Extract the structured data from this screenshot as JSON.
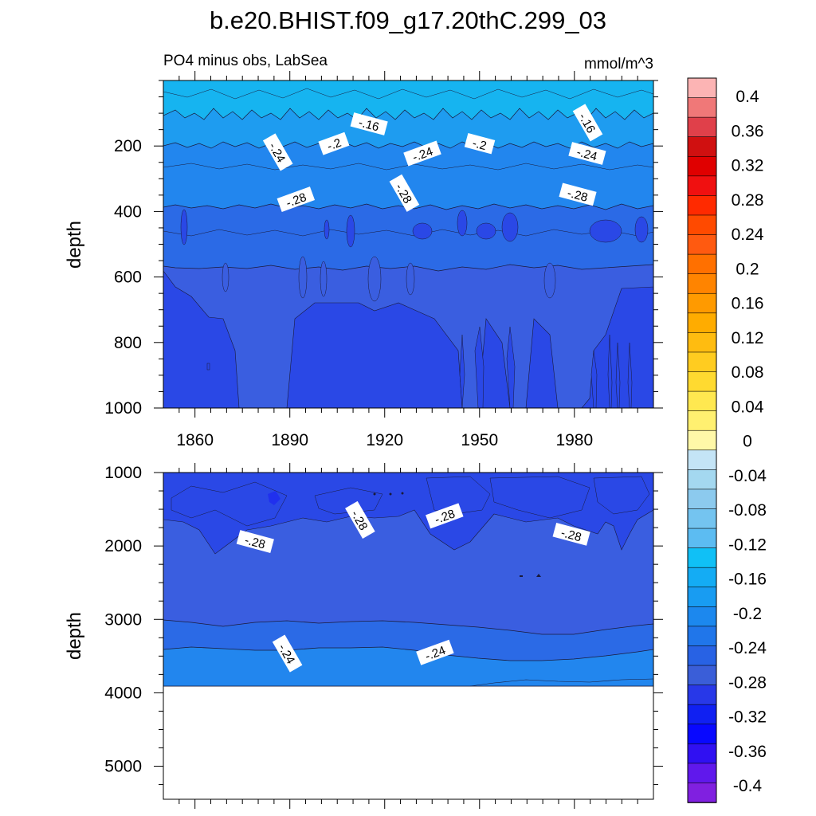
{
  "figure": {
    "title": "b.e20.BHIST.f09_g17.20thC.299_03"
  },
  "top_panel": {
    "left_label": "PO4 minus obs, LabSea",
    "right_label": "mmol/m^3",
    "ylabel": "depth",
    "y_ticks": [
      "200",
      "400",
      "600",
      "800",
      "1000"
    ],
    "x_ticks": [
      "1860",
      "1890",
      "1920",
      "1950",
      "1980"
    ]
  },
  "bottom_panel": {
    "ylabel": "depth",
    "y_ticks": [
      "1000",
      "2000",
      "3000",
      "4000",
      "5000"
    ]
  },
  "colorbar": {
    "labels": [
      "0.4",
      "0.36",
      "0.32",
      "0.28",
      "0.24",
      "0.2",
      "0.16",
      "0.12",
      "0.08",
      "0.04",
      "0",
      "-0.04",
      "-0.08",
      "-0.12",
      "-0.16",
      "-0.2",
      "-0.24",
      "-0.28",
      "-0.32",
      "-0.36",
      "-0.4"
    ]
  },
  "chart_data": [
    {
      "type": "heatmap",
      "title": "PO4 minus obs, LabSea",
      "units": "mmol/m^3",
      "xlabel": "",
      "ylabel": "depth",
      "xlim": [
        1850,
        2005
      ],
      "ylim": [
        1000,
        0
      ],
      "x_ticks": [
        1860,
        1890,
        1920,
        1950,
        1980
      ],
      "y_ticks": [
        200,
        400,
        600,
        800,
        1000
      ],
      "layers": [
        {
          "depth_range": [
            0,
            80
          ],
          "value": -0.14
        },
        {
          "depth_range": [
            80,
            160
          ],
          "value": -0.18
        },
        {
          "depth_range": [
            160,
            260
          ],
          "value": -0.22
        },
        {
          "depth_range": [
            260,
            330
          ],
          "value": -0.26
        },
        {
          "depth_range": [
            330,
            1000
          ],
          "value": -0.29
        }
      ],
      "deep_patches": [
        {
          "x_range": [
            1878,
            1892
          ],
          "depth_range": [
            450,
            1000
          ],
          "value": -0.31
        },
        {
          "x_range": [
            1955,
            1965
          ],
          "depth_range": [
            800,
            1000
          ],
          "value": -0.31
        }
      ],
      "contour_labels": [
        {
          "x": 1915,
          "depth": 135,
          "text": "-.16"
        },
        {
          "x": 1984,
          "depth": 130,
          "text": "-.16"
        },
        {
          "x": 1904,
          "depth": 195,
          "text": "-.2"
        },
        {
          "x": 1950,
          "depth": 195,
          "text": "-.2"
        },
        {
          "x": 1886,
          "depth": 220,
          "text": "-.24"
        },
        {
          "x": 1932,
          "depth": 225,
          "text": "-.24"
        },
        {
          "x": 1984,
          "depth": 225,
          "text": "-.24"
        },
        {
          "x": 1926,
          "depth": 345,
          "text": "-.28"
        },
        {
          "x": 1892,
          "depth": 365,
          "text": "-.28"
        },
        {
          "x": 1981,
          "depth": 350,
          "text": "-.28"
        }
      ]
    },
    {
      "type": "heatmap",
      "xlabel": "",
      "ylabel": "depth",
      "xlim": [
        1850,
        2005
      ],
      "ylim": [
        5450,
        1000
      ],
      "x_ticks": [
        1860,
        1890,
        1920,
        1950,
        1980
      ],
      "y_ticks": [
        1000,
        2000,
        3000,
        4000,
        5000
      ],
      "data_bottom_depth": 3870,
      "layers": [
        {
          "depth_range": [
            1000,
            1300
          ],
          "value": -0.3
        },
        {
          "depth_range": [
            1300,
            3000
          ],
          "value": -0.29
        },
        {
          "depth_range": [
            3000,
            3300
          ],
          "value": -0.27
        },
        {
          "depth_range": [
            3300,
            3870
          ],
          "value": -0.23
        }
      ],
      "contour_labels": [
        {
          "x": 1879,
          "depth": 1950,
          "text": "-.28"
        },
        {
          "x": 1912,
          "depth": 1650,
          "text": "-.28"
        },
        {
          "x": 1939,
          "depth": 1600,
          "text": "-.28"
        },
        {
          "x": 1979,
          "depth": 1850,
          "text": "-.28"
        },
        {
          "x": 1889,
          "depth": 3470,
          "text": "-.24"
        },
        {
          "x": 1936,
          "depth": 3460,
          "text": "-.24"
        }
      ]
    }
  ],
  "colors": {
    "level_minus_016": "#16b4f0",
    "level_minus_020": "#1e9cf0",
    "level_minus_024": "#2286ee",
    "level_minus_026": "#2b6ae6",
    "level_minus_028": "#3a5ee0",
    "level_minus_030": "#2a48e6",
    "level_minus_032": "#2038e8",
    "colorbar": [
      "#fcb4b4",
      "#f07878",
      "#e0404a",
      "#d01010",
      "#e00000",
      "#f01010",
      "#ff2a00",
      "#ff4a00",
      "#ff5a10",
      "#ff7000",
      "#ff8400",
      "#ff9a00",
      "#ffac00",
      "#ffbc10",
      "#ffcc20",
      "#ffda30",
      "#ffe850",
      "#fff070",
      "#fff8a8",
      "#c4e4f6",
      "#a4d8f0",
      "#8ccaee",
      "#74c4f0",
      "#5cbcf2",
      "#10c0f6",
      "#14acf4",
      "#189cf2",
      "#1c88ee",
      "#2076ea",
      "#2862e4",
      "#3a5ed8",
      "#2838e8",
      "#1020f2",
      "#0808ff",
      "#3010f2",
      "#6018ec",
      "#8020e0"
    ]
  }
}
